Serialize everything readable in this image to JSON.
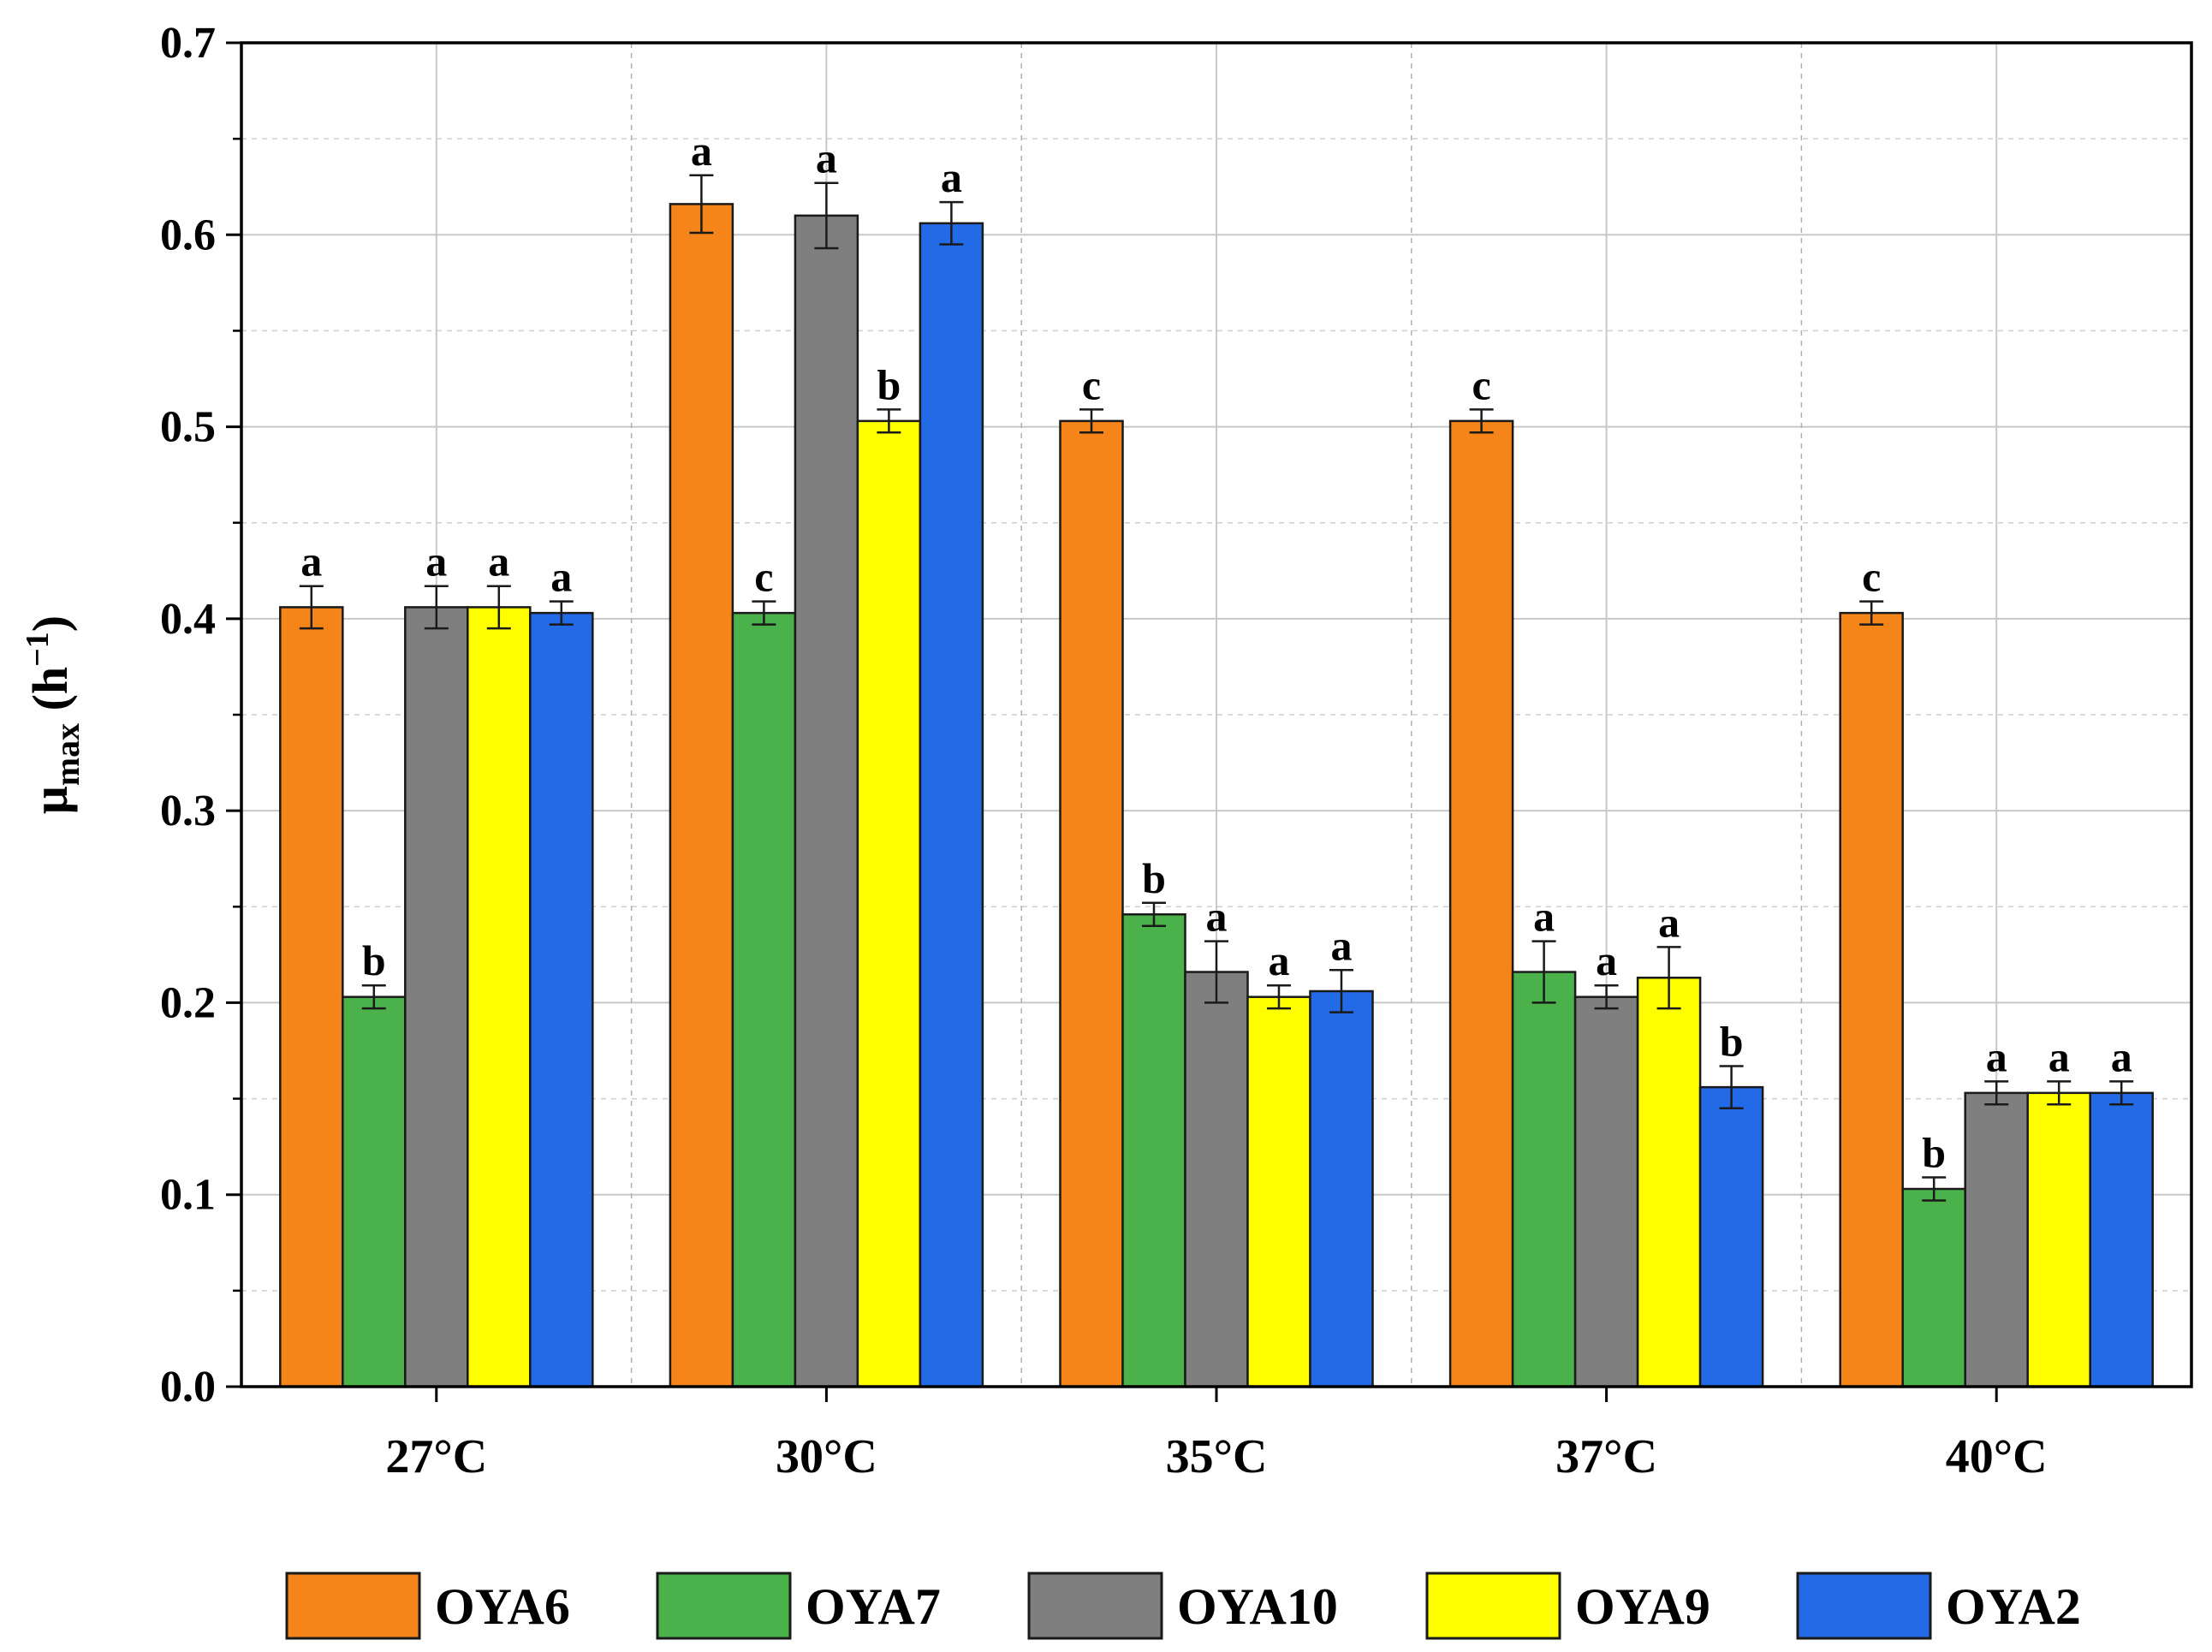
{
  "chart_data": {
    "type": "bar",
    "title": "",
    "xlabel": "",
    "ylabel": {
      "symbol": "μ",
      "subscript": "max",
      "unit_open": " (h",
      "unit_sup": "−1",
      "unit_close": ")"
    },
    "ylim": [
      0,
      0.7
    ],
    "yticks": [
      "0.0",
      "0.1",
      "0.2",
      "0.3",
      "0.4",
      "0.5",
      "0.6",
      "0.7"
    ],
    "grid": true,
    "legend_position": "bottom",
    "categories": [
      "27°C",
      "30°C",
      "35°C",
      "37°C",
      "40°C"
    ],
    "series": [
      {
        "name": "OYA6",
        "color": "#F58518",
        "values": [
          0.406,
          0.616,
          0.503,
          0.503,
          0.403
        ],
        "errors": [
          0.011,
          0.015,
          0.006,
          0.006,
          0.006
        ],
        "letters": [
          "a",
          "a",
          "c",
          "c",
          "c"
        ]
      },
      {
        "name": "OYA7",
        "color": "#4BB24B",
        "values": [
          0.203,
          0.403,
          0.246,
          0.216,
          0.103
        ],
        "errors": [
          0.006,
          0.006,
          0.006,
          0.016,
          0.006
        ],
        "letters": [
          "b",
          "c",
          "b",
          "a",
          "b"
        ]
      },
      {
        "name": "OYA10",
        "color": "#7F7F7F",
        "values": [
          0.406,
          0.61,
          0.216,
          0.203,
          0.153
        ],
        "errors": [
          0.011,
          0.017,
          0.016,
          0.006,
          0.006
        ],
        "letters": [
          "a",
          "a",
          "a",
          "a",
          "a"
        ]
      },
      {
        "name": "OYA9",
        "color": "#FFFF00",
        "values": [
          0.406,
          0.503,
          0.203,
          0.213,
          0.153
        ],
        "errors": [
          0.011,
          0.006,
          0.006,
          0.016,
          0.006
        ],
        "letters": [
          "a",
          "b",
          "a",
          "a",
          "a"
        ]
      },
      {
        "name": "OYA2",
        "color": "#236AE6",
        "values": [
          0.403,
          0.606,
          0.206,
          0.156,
          0.153
        ],
        "errors": [
          0.006,
          0.011,
          0.011,
          0.011,
          0.006
        ],
        "letters": [
          "a",
          "a",
          "a",
          "b",
          "a"
        ]
      }
    ]
  }
}
